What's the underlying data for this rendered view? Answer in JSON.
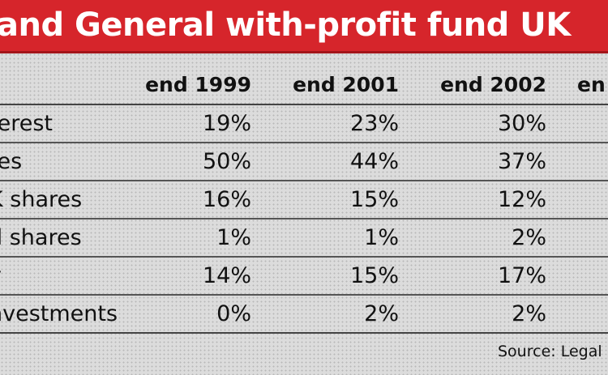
{
  "chart_data": {
    "type": "table",
    "title": "and General with-profit fund UK",
    "columns": [
      "end 1999",
      "end 2001",
      "end 2002",
      "en"
    ],
    "rows": [
      {
        "label": "terest",
        "values": [
          "19%",
          "23%",
          "30%",
          ""
        ]
      },
      {
        "label": "res",
        "values": [
          "50%",
          "44%",
          "37%",
          ""
        ]
      },
      {
        "label": "K shares",
        "values": [
          "16%",
          "15%",
          "12%",
          ""
        ]
      },
      {
        "label": "d shares",
        "values": [
          "1%",
          "1%",
          "2%",
          ""
        ]
      },
      {
        "label": "y",
        "values": [
          "14%",
          "15%",
          "17%",
          ""
        ]
      },
      {
        "label": "nvestments",
        "values": [
          "0%",
          "2%",
          "2%",
          ""
        ]
      }
    ],
    "source": "Source: Legal"
  },
  "colors": {
    "title_background": "#d6252b",
    "title_text": "#ffffff",
    "background": "#dcdcdc"
  }
}
